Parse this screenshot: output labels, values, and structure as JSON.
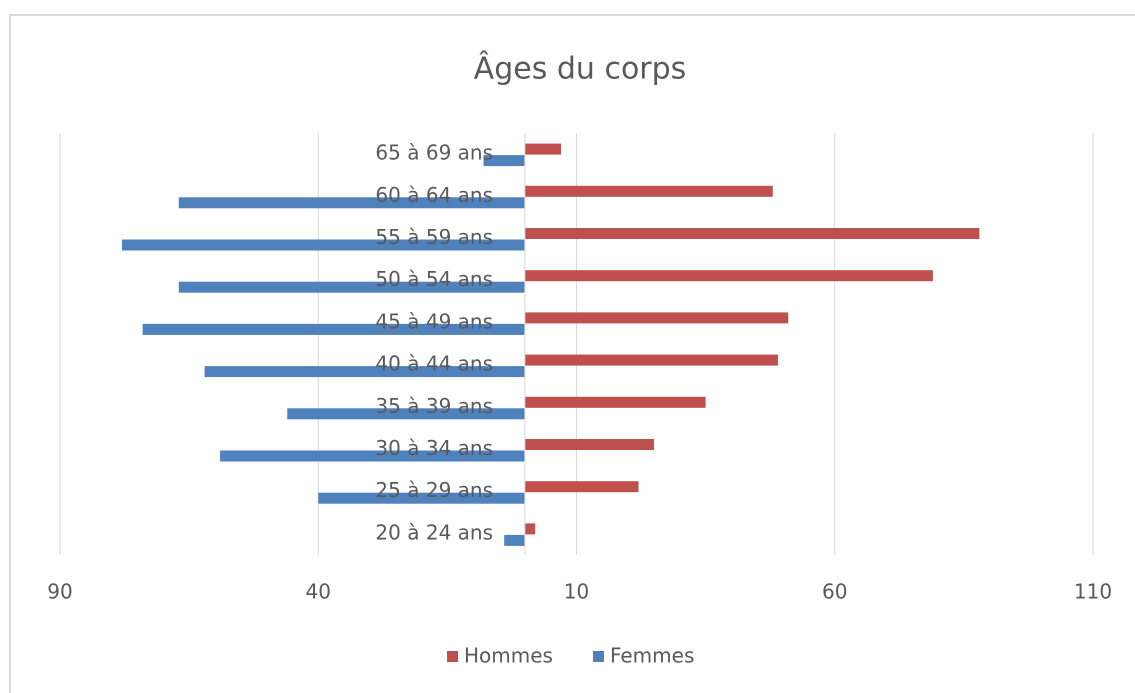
{
  "chart_data": {
    "type": "bar",
    "orientation": "horizontal",
    "stacked": true,
    "title": "Âges du corps",
    "categories": [
      "20 à 24 ans",
      "25 à 29 ans",
      "30 à 34 ans",
      "35 à 39 ans",
      "40 à 44 ans",
      "45 à 49 ans",
      "50 à 54 ans",
      "55 à 59 ans",
      "60 à 64 ans",
      "65 à 69 ans"
    ],
    "series": [
      {
        "name": "Hommes",
        "color": "#c0504d",
        "values": [
          2,
          22,
          25,
          35,
          49,
          51,
          79,
          88,
          48,
          7
        ]
      },
      {
        "name": "Femmes",
        "color": "#4f81bd",
        "values": [
          -4,
          -40,
          -59,
          -46,
          -62,
          -74,
          -67,
          -78,
          -67,
          -8
        ]
      }
    ],
    "xlim": [
      -90,
      110
    ],
    "xticks": [
      {
        "value": -90,
        "label": "90"
      },
      {
        "value": -40,
        "label": "40"
      },
      10,
      60,
      110
    ],
    "grid": true,
    "legend": "bottom"
  }
}
